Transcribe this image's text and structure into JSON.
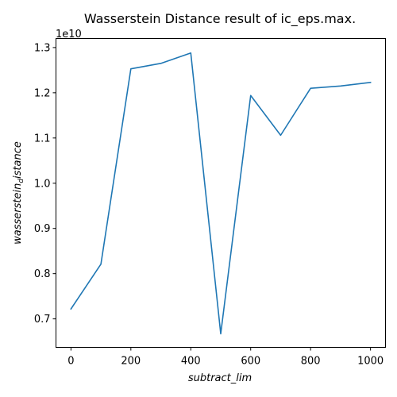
{
  "chart_data": {
    "type": "line",
    "title": "Wasserstein Distance result of ic_eps.max.",
    "xlabel": "subtract_lim",
    "ylabel": {
      "main": "wasserstein",
      "subscript": "d",
      "rest": "istance"
    },
    "offset_label": "1e10",
    "scale": 10000000000,
    "x": [
      0,
      100,
      200,
      300,
      400,
      500,
      600,
      700,
      800,
      900,
      1000
    ],
    "series": [
      {
        "values": [
          7220000000,
          8210000000,
          12530000000,
          12650000000,
          12880000000,
          6670000000,
          11940000000,
          11060000000,
          12100000000,
          12150000000,
          12230000000
        ],
        "color": "#1f77b4"
      }
    ],
    "xlim": [
      -50,
      1050
    ],
    "ylim": [
      6370000000,
      13200000000
    ],
    "xticks": [
      0,
      200,
      400,
      600,
      800,
      1000
    ],
    "yticks": [
      7000000000,
      8000000000,
      9000000000,
      10000000000,
      11000000000,
      12000000000,
      13000000000
    ],
    "ytick_labels": [
      "0.7",
      "0.8",
      "0.9",
      "1.0",
      "1.1",
      "1.2",
      "1.3"
    ],
    "grid": false,
    "legend": false
  }
}
